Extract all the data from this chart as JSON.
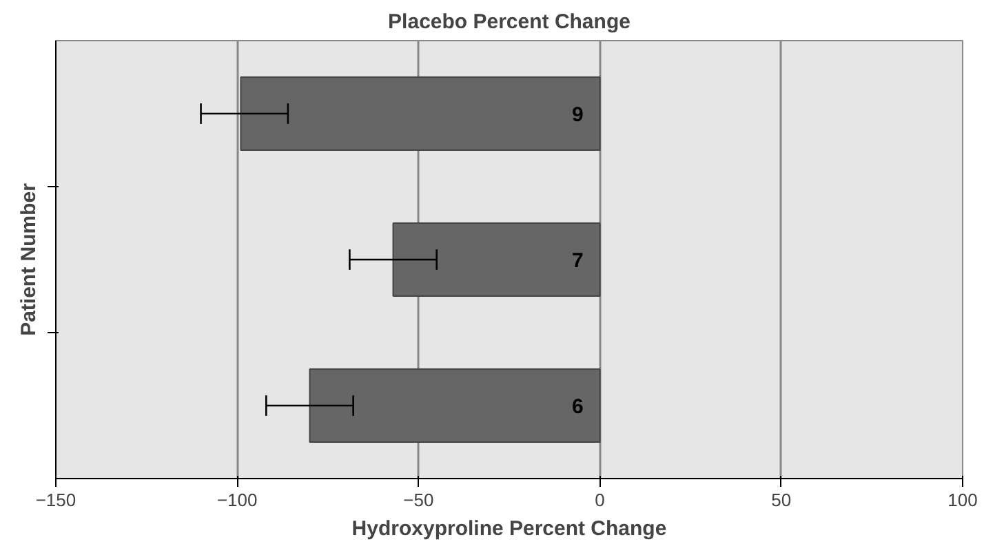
{
  "chart_data": {
    "type": "bar",
    "orientation": "horizontal",
    "title": "Placebo Percent Change",
    "xlabel": "Hydroxyproline Percent Change",
    "ylabel": "Patient Number",
    "categories": [
      "9",
      "7",
      "6"
    ],
    "values": [
      -99,
      -57,
      -80
    ],
    "errors": [
      [
        -110,
        -86
      ],
      [
        -69,
        -45
      ],
      [
        -92,
        -68
      ]
    ],
    "color": "#666666",
    "xlim": [
      -150,
      100
    ],
    "xticks": [
      -150,
      -100,
      -50,
      0,
      50,
      100
    ],
    "grid": "x"
  }
}
